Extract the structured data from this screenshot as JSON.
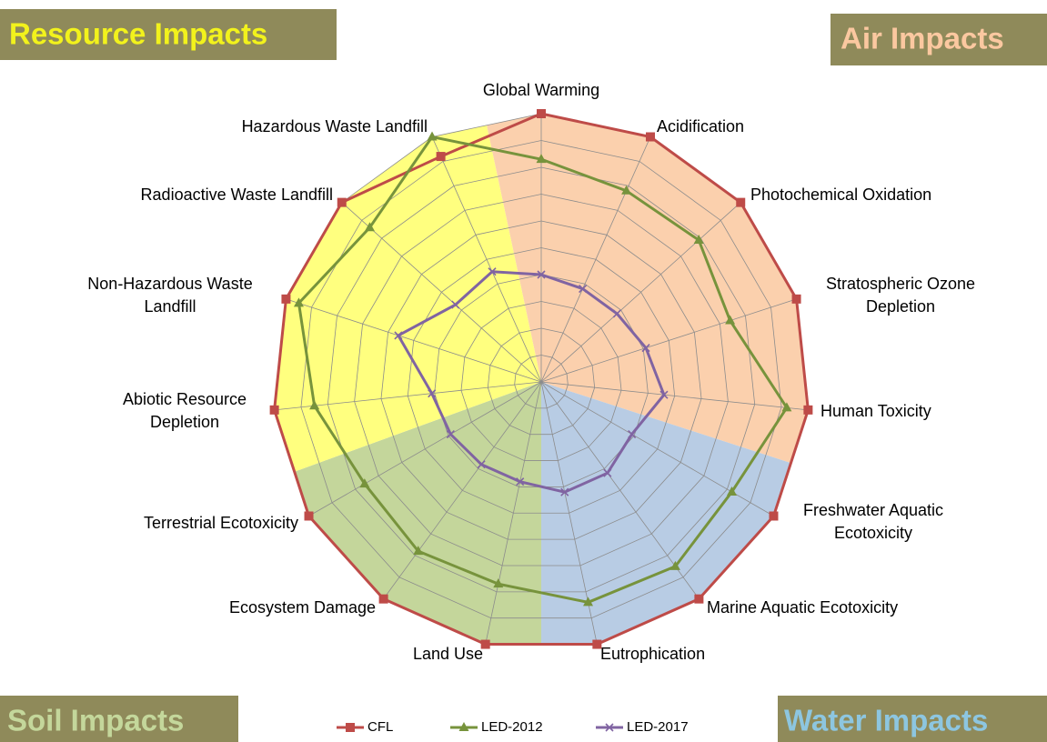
{
  "chart_data": {
    "type": "radar",
    "corner_labels": [
      "Resource Impacts",
      "Air Impacts",
      "Soil Impacts",
      "Water Impacts"
    ],
    "categories": [
      "Global Warming",
      "Acidification",
      "Photochemical Oxidation",
      "Stratospheric Ozone\nDepletion",
      "Human Toxicity",
      "Freshwater Aquatic\nEcotoxicity",
      "Marine Aquatic Ecotoxicity",
      "Eutrophication",
      "Land Use",
      "Ecosystem Damage",
      "Terrestrial Ecotoxicity",
      "Abiotic Resource\nDepletion",
      "Non-Hazardous Waste\nLandfill",
      "Radioactive Waste Landfill",
      "Hazardous Waste Landfill"
    ],
    "ylim": [
      0,
      1
    ],
    "yticks": [
      0,
      0.1,
      0.2,
      0.3,
      0.4,
      0.5,
      0.6,
      0.7,
      0.8,
      0.9,
      1
    ],
    "grid": true,
    "legend": "bottom",
    "series": [
      {
        "name": "CFL",
        "color": "#be4b48",
        "marker": "square",
        "values": [
          1,
          1,
          1,
          1,
          1,
          1,
          1,
          1,
          1,
          1,
          1,
          1,
          1,
          1,
          0.92
        ]
      },
      {
        "name": "LED-2012",
        "color": "#77933c",
        "marker": "triangle",
        "values": [
          0.83,
          0.78,
          0.79,
          0.74,
          0.92,
          0.82,
          0.85,
          0.84,
          0.77,
          0.78,
          0.76,
          0.85,
          0.95,
          0.86,
          1
        ]
      },
      {
        "name": "LED-2017",
        "color": "#8064a2",
        "marker": "x",
        "values": [
          0.4,
          0.38,
          0.38,
          0.41,
          0.46,
          0.39,
          0.42,
          0.42,
          0.38,
          0.38,
          0.39,
          0.41,
          0.56,
          0.43,
          0.45
        ]
      }
    ]
  }
}
